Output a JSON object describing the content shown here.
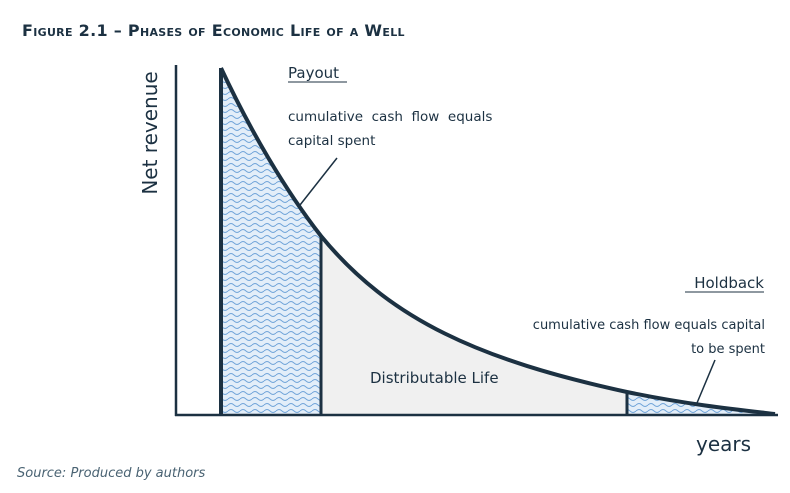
{
  "figure": {
    "title": "Figure 2.1 – Phases of Economic Life of a Well",
    "source": "Source: Produced by authors"
  },
  "axes": {
    "y_label": "Net revenue",
    "x_label": "years"
  },
  "annotations": {
    "payout_title": "Payout",
    "payout_line1": "cumulative  cash  flow  equals",
    "payout_line2": "capital spent",
    "holdback_title": "Holdback",
    "holdback_line1": "cumulative cash flow equals capital",
    "holdback_line2": "to be spent",
    "distributable_label": "Distributable Life"
  },
  "colors": {
    "ink": "#1c3142",
    "hatch": "#6fa3d8",
    "hatch_bg": "#e3eef9",
    "distributable_fill": "#f0f0f0"
  }
}
